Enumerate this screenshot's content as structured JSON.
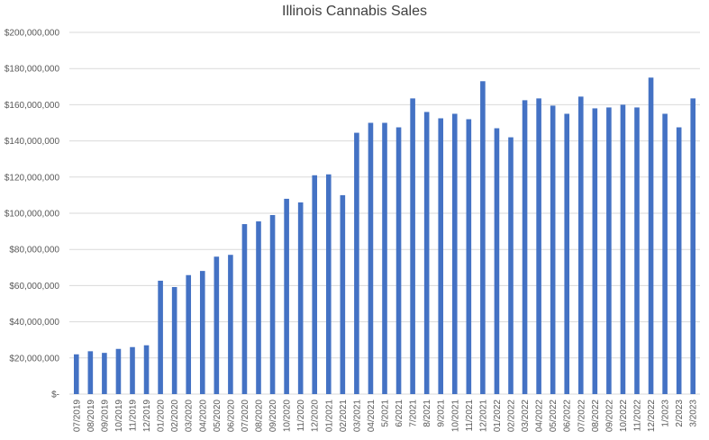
{
  "chart_data": {
    "type": "bar",
    "title": "Illinois Cannabis Sales",
    "xlabel": "",
    "ylabel": "",
    "ylim": [
      0,
      200000000
    ],
    "yticks": [
      0,
      20000000,
      40000000,
      60000000,
      80000000,
      100000000,
      120000000,
      140000000,
      160000000,
      180000000,
      200000000
    ],
    "ytick_labels": [
      "$-",
      "$20,000,000",
      "$40,000,000",
      "$60,000,000",
      "$80,000,000",
      "$100,000,000",
      "$120,000,000",
      "$140,000,000",
      "$160,000,000",
      "$180,000,000",
      "$200,000,000"
    ],
    "grid": true,
    "legend": "none",
    "bar_color": "#4472C4",
    "categories": [
      "07/2019",
      "08/2019",
      "09/2019",
      "10/2019",
      "11/2019",
      "12/2019",
      "01/2020",
      "02/2020",
      "03/2020",
      "04/2020",
      "05/2020",
      "06/2020",
      "07/2020",
      "08/2020",
      "09/2020",
      "10/2020",
      "11/2020",
      "12/2020",
      "01/2021",
      "02/2021",
      "03/2021",
      "04/2021",
      "5/2021",
      "6/2021",
      "7/2021",
      "8/2021",
      "9/2021",
      "10/2021",
      "11/2021",
      "12/2021",
      "01/2022",
      "02/2022",
      "03/2022",
      "04/2022",
      "05/2022",
      "06/2022",
      "07/2022",
      "08/2022",
      "09/2022",
      "10/2022",
      "11/2022",
      "12/2022",
      "1/2023",
      "2/2023",
      "3/2023"
    ],
    "values": [
      22000000,
      23700000,
      22800000,
      25000000,
      26000000,
      27000000,
      62700000,
      59200000,
      65800000,
      68100000,
      76000000,
      77000000,
      94000000,
      95500000,
      99000000,
      108000000,
      106000000,
      121000000,
      121500000,
      110000000,
      144500000,
      150000000,
      150000000,
      147500000,
      163500000,
      156000000,
      152500000,
      155000000,
      152000000,
      173000000,
      147000000,
      142000000,
      162500000,
      163500000,
      159500000,
      155000000,
      164500000,
      158000000,
      158500000,
      160000000,
      158500000,
      175000000,
      155000000,
      147500000,
      163500000
    ]
  }
}
